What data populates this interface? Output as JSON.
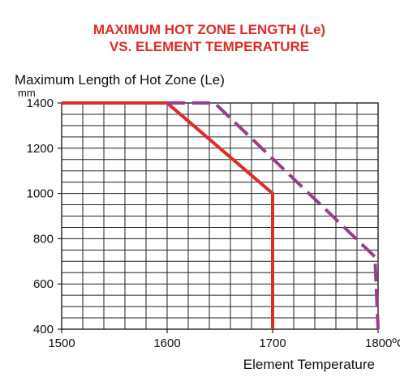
{
  "chart_data": {
    "type": "line",
    "title_lines": [
      "MAXIMUM HOT ZONE LENGTH (Le)",
      "VS. ELEMENT TEMPERATURE"
    ],
    "ylabel": "Maximum Length of Hot Zone (Le)",
    "yunit": "mm",
    "xlabel": "Element Temperature",
    "xlim": [
      1500,
      1800
    ],
    "ylim": [
      400,
      1400
    ],
    "x_ticks": [
      {
        "value": 1500,
        "label": "1500"
      },
      {
        "value": 1600,
        "label": "1600"
      },
      {
        "value": 1700,
        "label": "1700"
      },
      {
        "value": 1800,
        "label": "1800ºC"
      }
    ],
    "y_ticks": [
      {
        "value": 400,
        "label": "400"
      },
      {
        "value": 600,
        "label": "600"
      },
      {
        "value": 800,
        "label": "800"
      },
      {
        "value": 1000,
        "label": "1000"
      },
      {
        "value": 1200,
        "label": "1200"
      },
      {
        "value": 1400,
        "label": "1400"
      }
    ],
    "grid": true,
    "series": [
      {
        "style": "solid",
        "color": "#e02b27",
        "points": [
          [
            1500,
            1400
          ],
          [
            1600,
            1400
          ],
          [
            1700,
            1000
          ],
          [
            1700,
            400
          ]
        ]
      },
      {
        "style": "dashed",
        "color": "#9b3d8c",
        "points": [
          [
            1600,
            1400
          ],
          [
            1645,
            1400
          ],
          [
            1797,
            720
          ],
          [
            1800,
            400
          ]
        ]
      }
    ]
  }
}
